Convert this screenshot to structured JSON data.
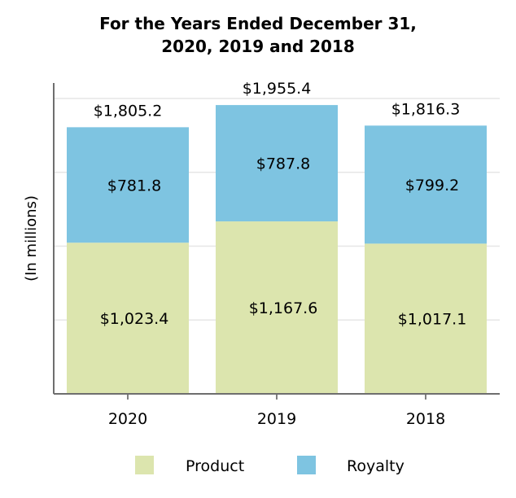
{
  "chart_data": {
    "type": "bar",
    "stacked": true,
    "title_lines": [
      "For the Years Ended December 31,",
      "2020, 2019 and 2018"
    ],
    "ylabel": "(In millions)",
    "categories": [
      "2020",
      "2019",
      "2018"
    ],
    "series": [
      {
        "name": "Product",
        "values": [
          1023.4,
          1167.6,
          1017.1
        ],
        "labels": [
          "$1,023.4",
          "$1,167.6",
          "$1,017.1"
        ],
        "color": "#dce5ae"
      },
      {
        "name": "Royalty",
        "values": [
          781.8,
          787.8,
          799.2
        ],
        "labels": [
          "$781.8",
          "$787.8",
          "$799.2"
        ],
        "color": "#7ec4e1"
      }
    ],
    "totals": [
      1805.2,
      1955.4,
      1816.3
    ],
    "total_labels": [
      "$1,805.2",
      "$1,955.4",
      "$1,816.3"
    ],
    "ylim": [
      0,
      2000
    ],
    "yticks": [
      0,
      500,
      1000,
      1500,
      2000
    ],
    "grid": true,
    "legend_position": "bottom"
  }
}
